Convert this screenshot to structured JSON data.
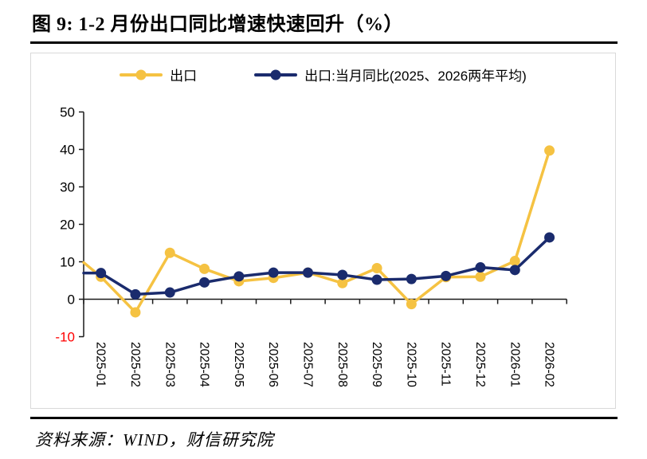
{
  "figure": {
    "title": "图 9:  1-2 月份出口同比增速快速回升（%）",
    "source": "资料来源：WIND，财信研究院"
  },
  "colors": {
    "export_series": "#F5C242",
    "avg_series": "#1A2B6D",
    "negative_tick": "#FF0000",
    "axis": "#1a1a1a",
    "frame_border": "#d9d9d9",
    "title_text": "#000000"
  },
  "chart_data": {
    "type": "line",
    "title": "图 9: 1-2 月份出口同比增速快速回升（%）",
    "categories": [
      "2025-01",
      "2025-02",
      "2025-03",
      "2025-04",
      "2025-05",
      "2025-06",
      "2025-07",
      "2025-08",
      "2025-09",
      "2025-10",
      "2025-11",
      "2025-12",
      "2026-01",
      "2026-02"
    ],
    "series": [
      {
        "name": "出口",
        "color": "#F5C242",
        "values": [
          6.0,
          -3.5,
          12.4,
          8.1,
          4.8,
          5.7,
          7.1,
          4.3,
          8.3,
          -1.3,
          5.9,
          6.0,
          10.2,
          39.7
        ],
        "edge_start": 9.8
      },
      {
        "name": "出口:当月同比(2025、2026两年平均)",
        "color": "#1A2B6D",
        "values": [
          7.0,
          1.3,
          1.8,
          4.5,
          6.1,
          7.1,
          7.1,
          6.5,
          5.2,
          5.4,
          6.2,
          8.5,
          7.8,
          16.5
        ],
        "edge_start": 7.0
      }
    ],
    "xlabel": "",
    "ylabel": "",
    "ylim": [
      -10,
      50
    ],
    "yticks": [
      50,
      40,
      30,
      20,
      10,
      0,
      -10
    ],
    "x_label_rotation": 90,
    "legend_position": "top",
    "grid": false
  }
}
